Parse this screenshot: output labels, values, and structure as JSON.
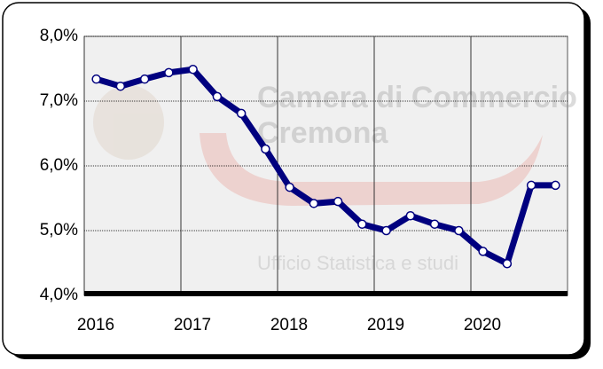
{
  "chart_data": {
    "type": "line",
    "watermark": {
      "lines": [
        "Camera di Commercio",
        "Cremona"
      ],
      "subtitle": "Ufficio Statistica e studi"
    },
    "x": [
      2016.125,
      2016.375,
      2016.625,
      2016.875,
      2017.125,
      2017.375,
      2017.625,
      2017.875,
      2018.125,
      2018.375,
      2018.625,
      2018.875,
      2019.125,
      2019.375,
      2019.625,
      2019.875,
      2020.125,
      2020.375,
      2020.625,
      2020.875
    ],
    "series": [
      {
        "color": "#00007f",
        "values": [
          7.34,
          7.23,
          7.34,
          7.44,
          7.49,
          7.07,
          6.81,
          6.26,
          5.67,
          5.42,
          5.45,
          5.1,
          5.0,
          5.23,
          5.1,
          5.0,
          4.68,
          4.49,
          5.7,
          5.7
        ]
      }
    ],
    "xlim": [
      2016,
      2021
    ],
    "xticks": [
      2016,
      2017,
      2018,
      2019,
      2020
    ],
    "ylim": [
      4,
      8
    ],
    "yticks": [
      {
        "value": 4,
        "label": "4,0%"
      },
      {
        "value": 5,
        "label": "5,0%"
      },
      {
        "value": 6,
        "label": "6,0%"
      },
      {
        "value": 7,
        "label": "7,0%"
      },
      {
        "value": 8,
        "label": "8,0%"
      }
    ],
    "grid": true
  }
}
